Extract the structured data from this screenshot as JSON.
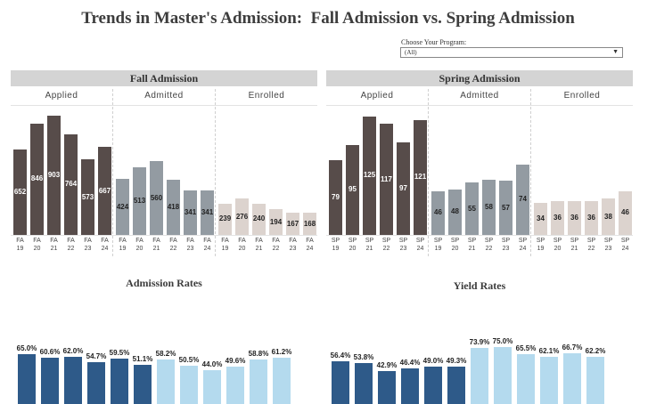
{
  "title": "Trends in Master's Admission:  Fall Admission vs. Spring Admission",
  "filter": {
    "label": "Choose Your Program:",
    "value": "(All)"
  },
  "colors": {
    "applied": "#574c4a",
    "admitted": "#939ba2",
    "enrolled": "#dcd3ce",
    "rate_dark": "#2e5a89",
    "rate_light": "#b4daee"
  },
  "fall": {
    "header": "Fall Admission",
    "groups": [
      "Applied",
      "Admitted",
      "Enrolled"
    ],
    "ticks": [
      "FA 19",
      "FA 20",
      "FA 21",
      "FA 22",
      "FA 23",
      "FA 24"
    ]
  },
  "spring": {
    "header": "Spring Admission",
    "groups": [
      "Applied",
      "Admitted",
      "Enrolled"
    ],
    "ticks": [
      "SP 19",
      "SP 20",
      "SP 21",
      "SP 22",
      "SP 23",
      "SP 24"
    ]
  },
  "admission_rates": {
    "title": "Admission Rates"
  },
  "yield_rates": {
    "title": "Yield Rates"
  },
  "chart_data": [
    {
      "type": "bar",
      "title": "Fall Admission",
      "categories": [
        "FA 19",
        "FA 20",
        "FA 21",
        "FA 22",
        "FA 23",
        "FA 24"
      ],
      "series": [
        {
          "name": "Applied",
          "values": [
            652,
            846,
            903,
            764,
            573,
            667
          ]
        },
        {
          "name": "Admitted",
          "values": [
            424,
            513,
            560,
            418,
            341,
            341
          ]
        },
        {
          "name": "Enrolled",
          "values": [
            239,
            276,
            240,
            194,
            167,
            168
          ]
        }
      ],
      "ylim": [
        0,
        960
      ]
    },
    {
      "type": "bar",
      "title": "Spring Admission",
      "categories": [
        "SP 19",
        "SP 20",
        "SP 21",
        "SP 22",
        "SP 23",
        "SP 24"
      ],
      "series": [
        {
          "name": "Applied",
          "values": [
            79,
            95,
            125,
            117,
            97,
            121
          ]
        },
        {
          "name": "Admitted",
          "values": [
            46,
            48,
            55,
            58,
            57,
            74
          ]
        },
        {
          "name": "Enrolled",
          "values": [
            34,
            36,
            36,
            36,
            38,
            46
          ]
        }
      ],
      "ylim": [
        0,
        133
      ]
    },
    {
      "type": "bar",
      "title": "Admission Rates",
      "series": [
        {
          "name": "Fall",
          "values": [
            65.0,
            60.6,
            62.0,
            54.7,
            59.5,
            51.1
          ],
          "labels": [
            "65.0%",
            "60.6%",
            "62.0%",
            "54.7%",
            "59.5%",
            "51.1%"
          ]
        },
        {
          "name": "Spring",
          "values": [
            58.2,
            50.5,
            44.0,
            49.6,
            58.8,
            61.2
          ],
          "labels": [
            "58.2%",
            "50.5%",
            "44.0%",
            "49.6%",
            "58.8%",
            "61.2%"
          ]
        }
      ],
      "ylim": [
        0,
        100
      ]
    },
    {
      "type": "bar",
      "title": "Yield Rates",
      "series": [
        {
          "name": "Fall",
          "values": [
            56.4,
            53.8,
            42.9,
            46.4,
            49.0,
            49.3
          ],
          "labels": [
            "56.4%",
            "53.8%",
            "42.9%",
            "46.4%",
            "49.0%",
            "49.3%"
          ]
        },
        {
          "name": "Spring",
          "values": [
            73.9,
            75.0,
            65.5,
            62.1,
            66.7,
            62.2
          ],
          "labels": [
            "73.9%",
            "75.0%",
            "65.5%",
            "62.1%",
            "66.7%",
            "62.2%"
          ]
        }
      ],
      "ylim": [
        0,
        100
      ]
    }
  ]
}
